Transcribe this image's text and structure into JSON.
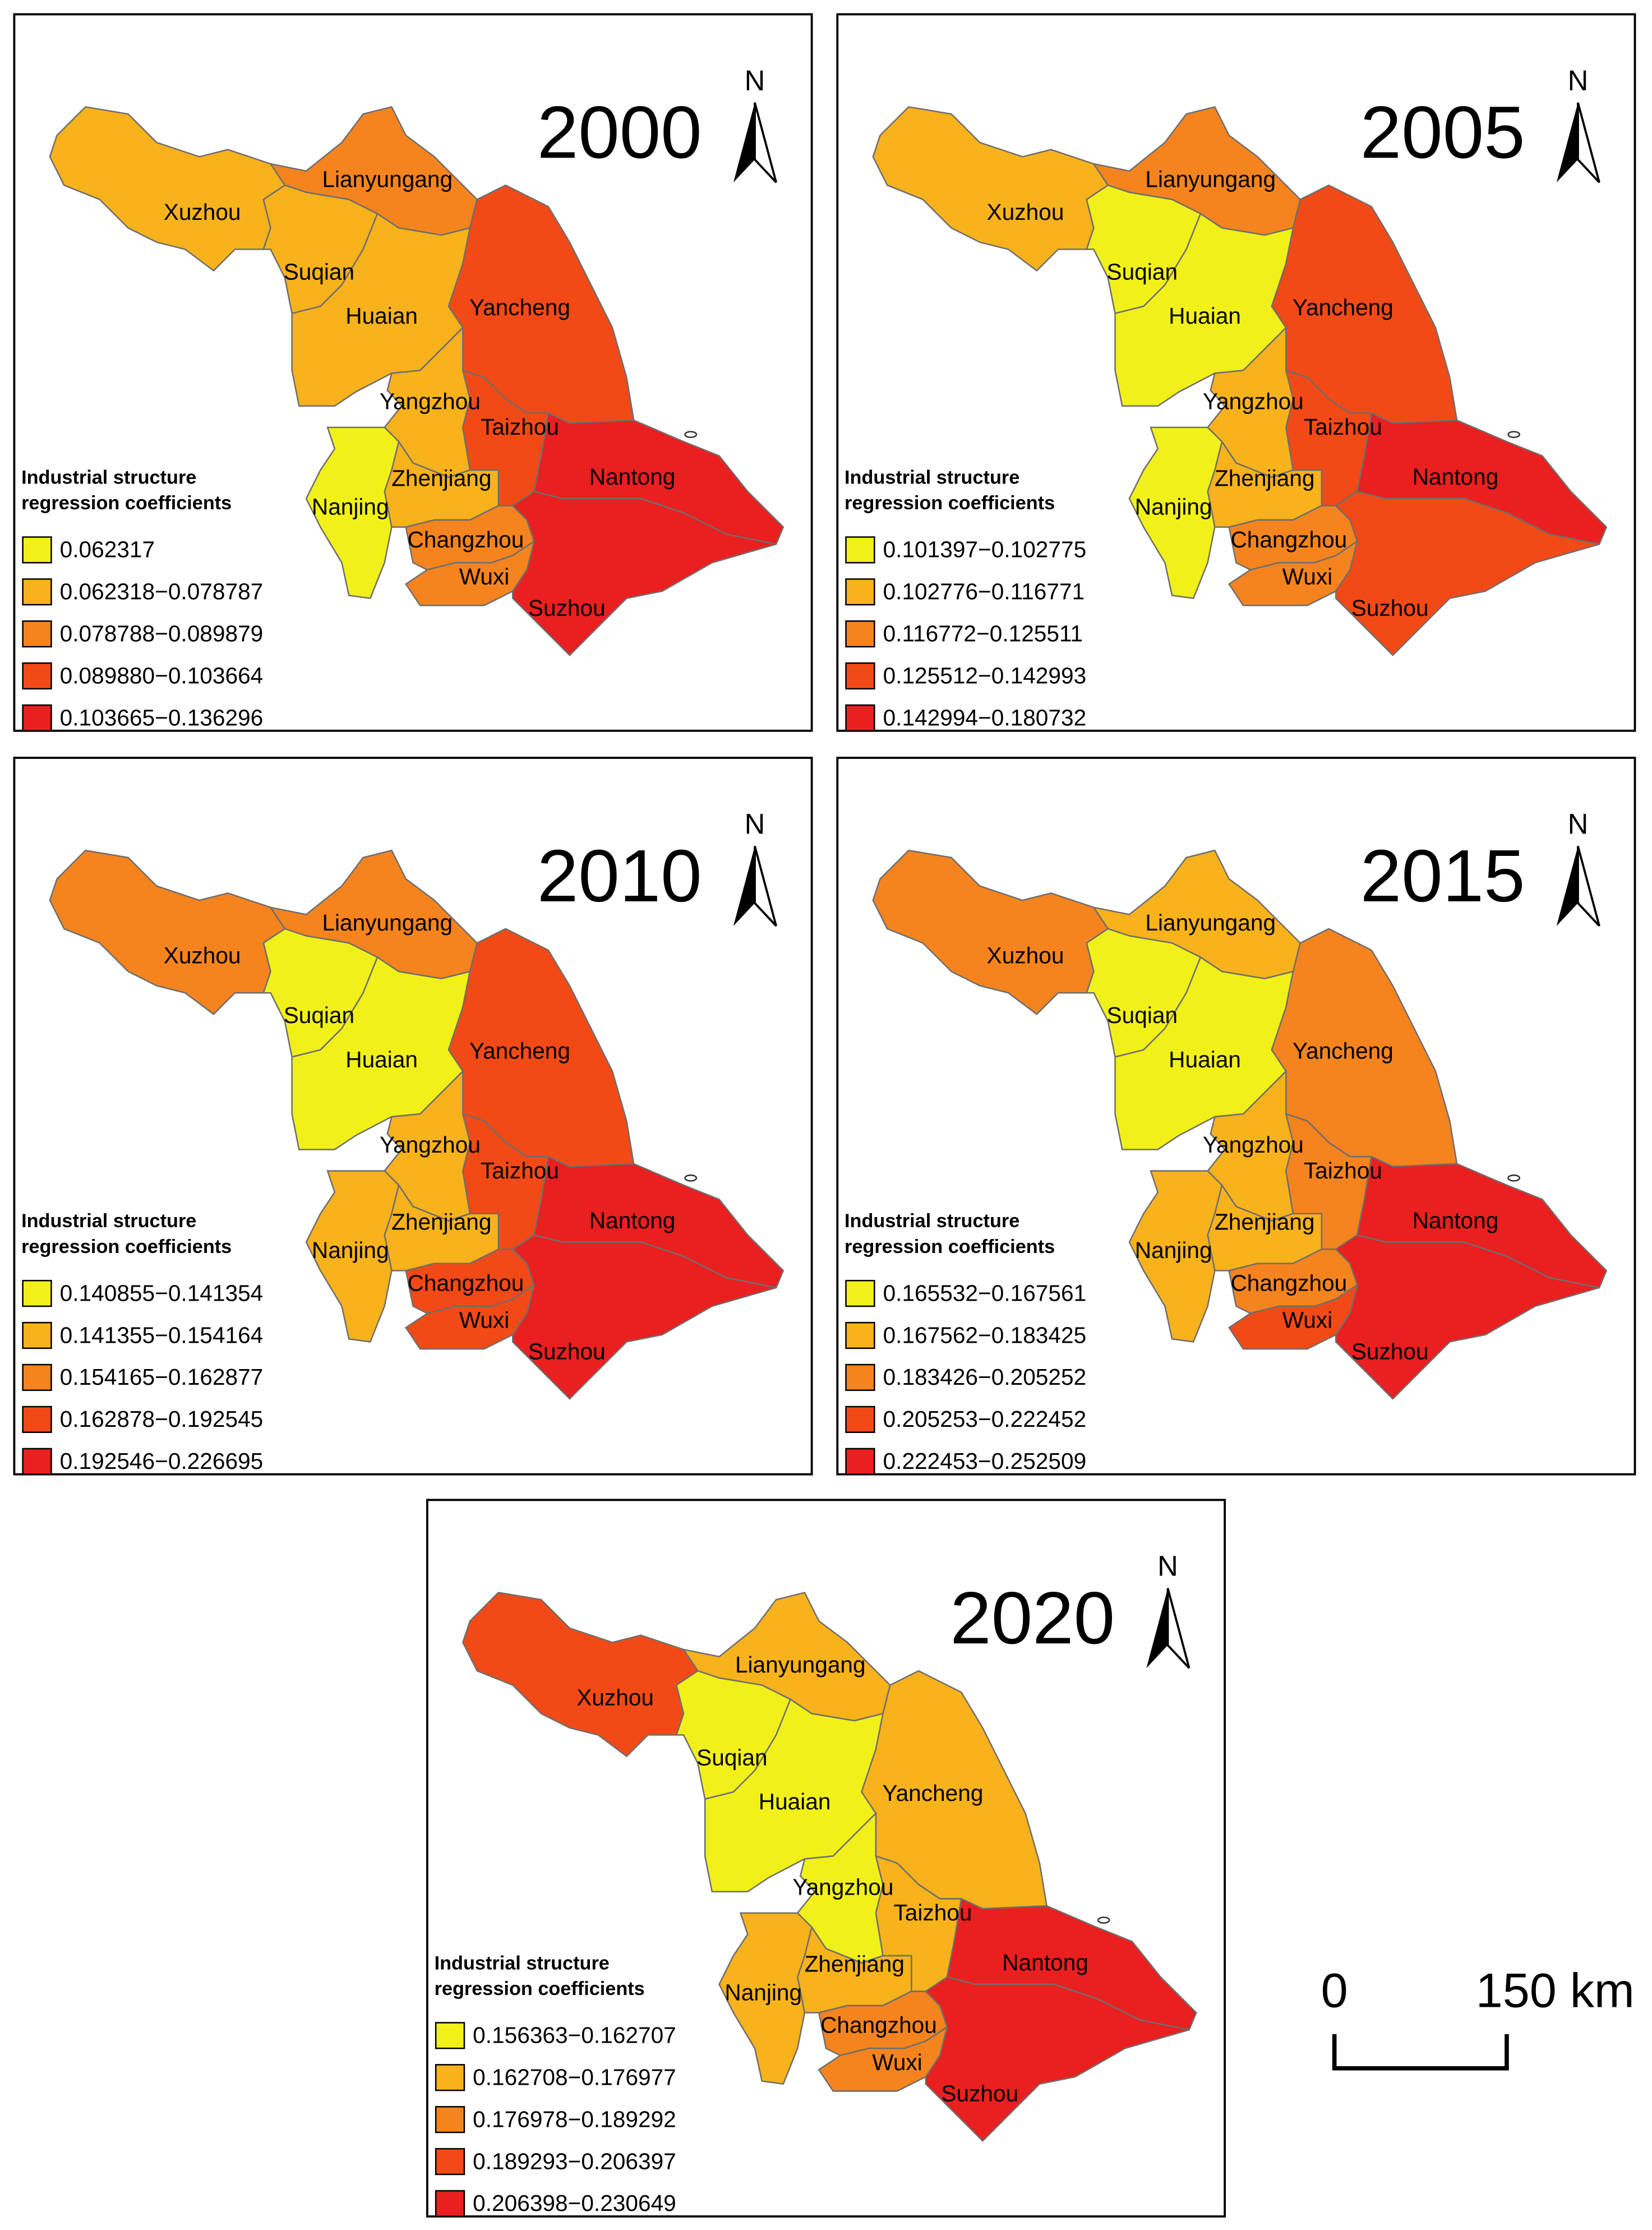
{
  "north_label": "N",
  "scale_bar": {
    "start": "0",
    "end": "150 km"
  },
  "panels": [
    {
      "year": "2000",
      "legend_title": [
        "Industrial structure",
        "regression coefficients"
      ],
      "legend": [
        {
          "label": "0.062317",
          "color": "#f1f119"
        },
        {
          "label": "0.062318−0.078787",
          "color": "#f8b21b"
        },
        {
          "label": "0.078788−0.089879",
          "color": "#f5841f"
        },
        {
          "label": "0.089880−0.103664",
          "color": "#f24a16"
        },
        {
          "label": "0.103665−0.136296",
          "color": "#ea1f1f"
        }
      ],
      "regions": [
        {
          "name": "Xuzhou",
          "color": "#f8b21b"
        },
        {
          "name": "Lianyungang",
          "color": "#f5841f"
        },
        {
          "name": "Suqian",
          "color": "#f8b21b"
        },
        {
          "name": "Huaian",
          "color": "#f8b21b"
        },
        {
          "name": "Yancheng",
          "color": "#f24a16"
        },
        {
          "name": "Yangzhou",
          "color": "#f8b21b"
        },
        {
          "name": "Taizhou",
          "color": "#f24a16"
        },
        {
          "name": "Nantong",
          "color": "#ea1f1f"
        },
        {
          "name": "Zhenjiang",
          "color": "#f8b21b"
        },
        {
          "name": "Nanjing",
          "color": "#f1f119"
        },
        {
          "name": "Changzhou",
          "color": "#f5841f"
        },
        {
          "name": "Wuxi",
          "color": "#f5841f"
        },
        {
          "name": "Suzhou",
          "color": "#ea1f1f"
        }
      ]
    },
    {
      "year": "2005",
      "legend_title": [
        "Industrial structure",
        "regression coefficients"
      ],
      "legend": [
        {
          "label": "0.101397−0.102775",
          "color": "#f1f119"
        },
        {
          "label": "0.102776−0.116771",
          "color": "#f8b21b"
        },
        {
          "label": "0.116772−0.125511",
          "color": "#f5841f"
        },
        {
          "label": "0.125512−0.142993",
          "color": "#f24a16"
        },
        {
          "label": "0.142994−0.180732",
          "color": "#ea1f1f"
        }
      ],
      "regions": [
        {
          "name": "Xuzhou",
          "color": "#f8b21b"
        },
        {
          "name": "Lianyungang",
          "color": "#f5841f"
        },
        {
          "name": "Suqian",
          "color": "#f1f119"
        },
        {
          "name": "Huaian",
          "color": "#f1f119"
        },
        {
          "name": "Yancheng",
          "color": "#f24a16"
        },
        {
          "name": "Yangzhou",
          "color": "#f8b21b"
        },
        {
          "name": "Taizhou",
          "color": "#f24a16"
        },
        {
          "name": "Nantong",
          "color": "#ea1f1f"
        },
        {
          "name": "Zhenjiang",
          "color": "#f8b21b"
        },
        {
          "name": "Nanjing",
          "color": "#f1f119"
        },
        {
          "name": "Changzhou",
          "color": "#f5841f"
        },
        {
          "name": "Wuxi",
          "color": "#f5841f"
        },
        {
          "name": "Suzhou",
          "color": "#f24a16"
        }
      ]
    },
    {
      "year": "2010",
      "legend_title": [
        "Industrial structure",
        "regression coefficients"
      ],
      "legend": [
        {
          "label": "0.140855−0.141354",
          "color": "#f1f119"
        },
        {
          "label": "0.141355−0.154164",
          "color": "#f8b21b"
        },
        {
          "label": "0.154165−0.162877",
          "color": "#f5841f"
        },
        {
          "label": "0.162878−0.192545",
          "color": "#f24a16"
        },
        {
          "label": "0.192546−0.226695",
          "color": "#ea1f1f"
        }
      ],
      "regions": [
        {
          "name": "Xuzhou",
          "color": "#f5841f"
        },
        {
          "name": "Lianyungang",
          "color": "#f5841f"
        },
        {
          "name": "Suqian",
          "color": "#f1f119"
        },
        {
          "name": "Huaian",
          "color": "#f1f119"
        },
        {
          "name": "Yancheng",
          "color": "#f24a16"
        },
        {
          "name": "Yangzhou",
          "color": "#f8b21b"
        },
        {
          "name": "Taizhou",
          "color": "#f24a16"
        },
        {
          "name": "Nantong",
          "color": "#ea1f1f"
        },
        {
          "name": "Zhenjiang",
          "color": "#f8b21b"
        },
        {
          "name": "Nanjing",
          "color": "#f8b21b"
        },
        {
          "name": "Changzhou",
          "color": "#f24a16"
        },
        {
          "name": "Wuxi",
          "color": "#f24a16"
        },
        {
          "name": "Suzhou",
          "color": "#ea1f1f"
        }
      ]
    },
    {
      "year": "2015",
      "legend_title": [
        "Industrial structure",
        "regression coefficients"
      ],
      "legend": [
        {
          "label": "0.165532−0.167561",
          "color": "#f1f119"
        },
        {
          "label": "0.167562−0.183425",
          "color": "#f8b21b"
        },
        {
          "label": "0.183426−0.205252",
          "color": "#f5841f"
        },
        {
          "label": "0.205253−0.222452",
          "color": "#f24a16"
        },
        {
          "label": "0.222453−0.252509",
          "color": "#ea1f1f"
        }
      ],
      "regions": [
        {
          "name": "Xuzhou",
          "color": "#f5841f"
        },
        {
          "name": "Lianyungang",
          "color": "#f8b21b"
        },
        {
          "name": "Suqian",
          "color": "#f1f119"
        },
        {
          "name": "Huaian",
          "color": "#f1f119"
        },
        {
          "name": "Yancheng",
          "color": "#f5841f"
        },
        {
          "name": "Yangzhou",
          "color": "#f8b21b"
        },
        {
          "name": "Taizhou",
          "color": "#f5841f"
        },
        {
          "name": "Nantong",
          "color": "#ea1f1f"
        },
        {
          "name": "Zhenjiang",
          "color": "#f8b21b"
        },
        {
          "name": "Nanjing",
          "color": "#f8b21b"
        },
        {
          "name": "Changzhou",
          "color": "#f5841f"
        },
        {
          "name": "Wuxi",
          "color": "#f24a16"
        },
        {
          "name": "Suzhou",
          "color": "#ea1f1f"
        }
      ]
    },
    {
      "year": "2020",
      "legend_title": [
        "Industrial structure",
        "regression coefficients"
      ],
      "legend": [
        {
          "label": "0.156363−0.162707",
          "color": "#f1f119"
        },
        {
          "label": "0.162708−0.176977",
          "color": "#f8b21b"
        },
        {
          "label": "0.176978−0.189292",
          "color": "#f5841f"
        },
        {
          "label": "0.189293−0.206397",
          "color": "#f24a16"
        },
        {
          "label": "0.206398−0.230649",
          "color": "#ea1f1f"
        }
      ],
      "regions": [
        {
          "name": "Xuzhou",
          "color": "#f24a16"
        },
        {
          "name": "Lianyungang",
          "color": "#f8b21b"
        },
        {
          "name": "Suqian",
          "color": "#f1f119"
        },
        {
          "name": "Huaian",
          "color": "#f1f119"
        },
        {
          "name": "Yancheng",
          "color": "#f8b21b"
        },
        {
          "name": "Yangzhou",
          "color": "#f1f119"
        },
        {
          "name": "Taizhou",
          "color": "#f8b21b"
        },
        {
          "name": "Nantong",
          "color": "#ea1f1f"
        },
        {
          "name": "Zhenjiang",
          "color": "#f8b21b"
        },
        {
          "name": "Nanjing",
          "color": "#f8b21b"
        },
        {
          "name": "Changzhou",
          "color": "#f5841f"
        },
        {
          "name": "Wuxi",
          "color": "#f5841f"
        },
        {
          "name": "Suzhou",
          "color": "#ea1f1f"
        }
      ]
    }
  ]
}
